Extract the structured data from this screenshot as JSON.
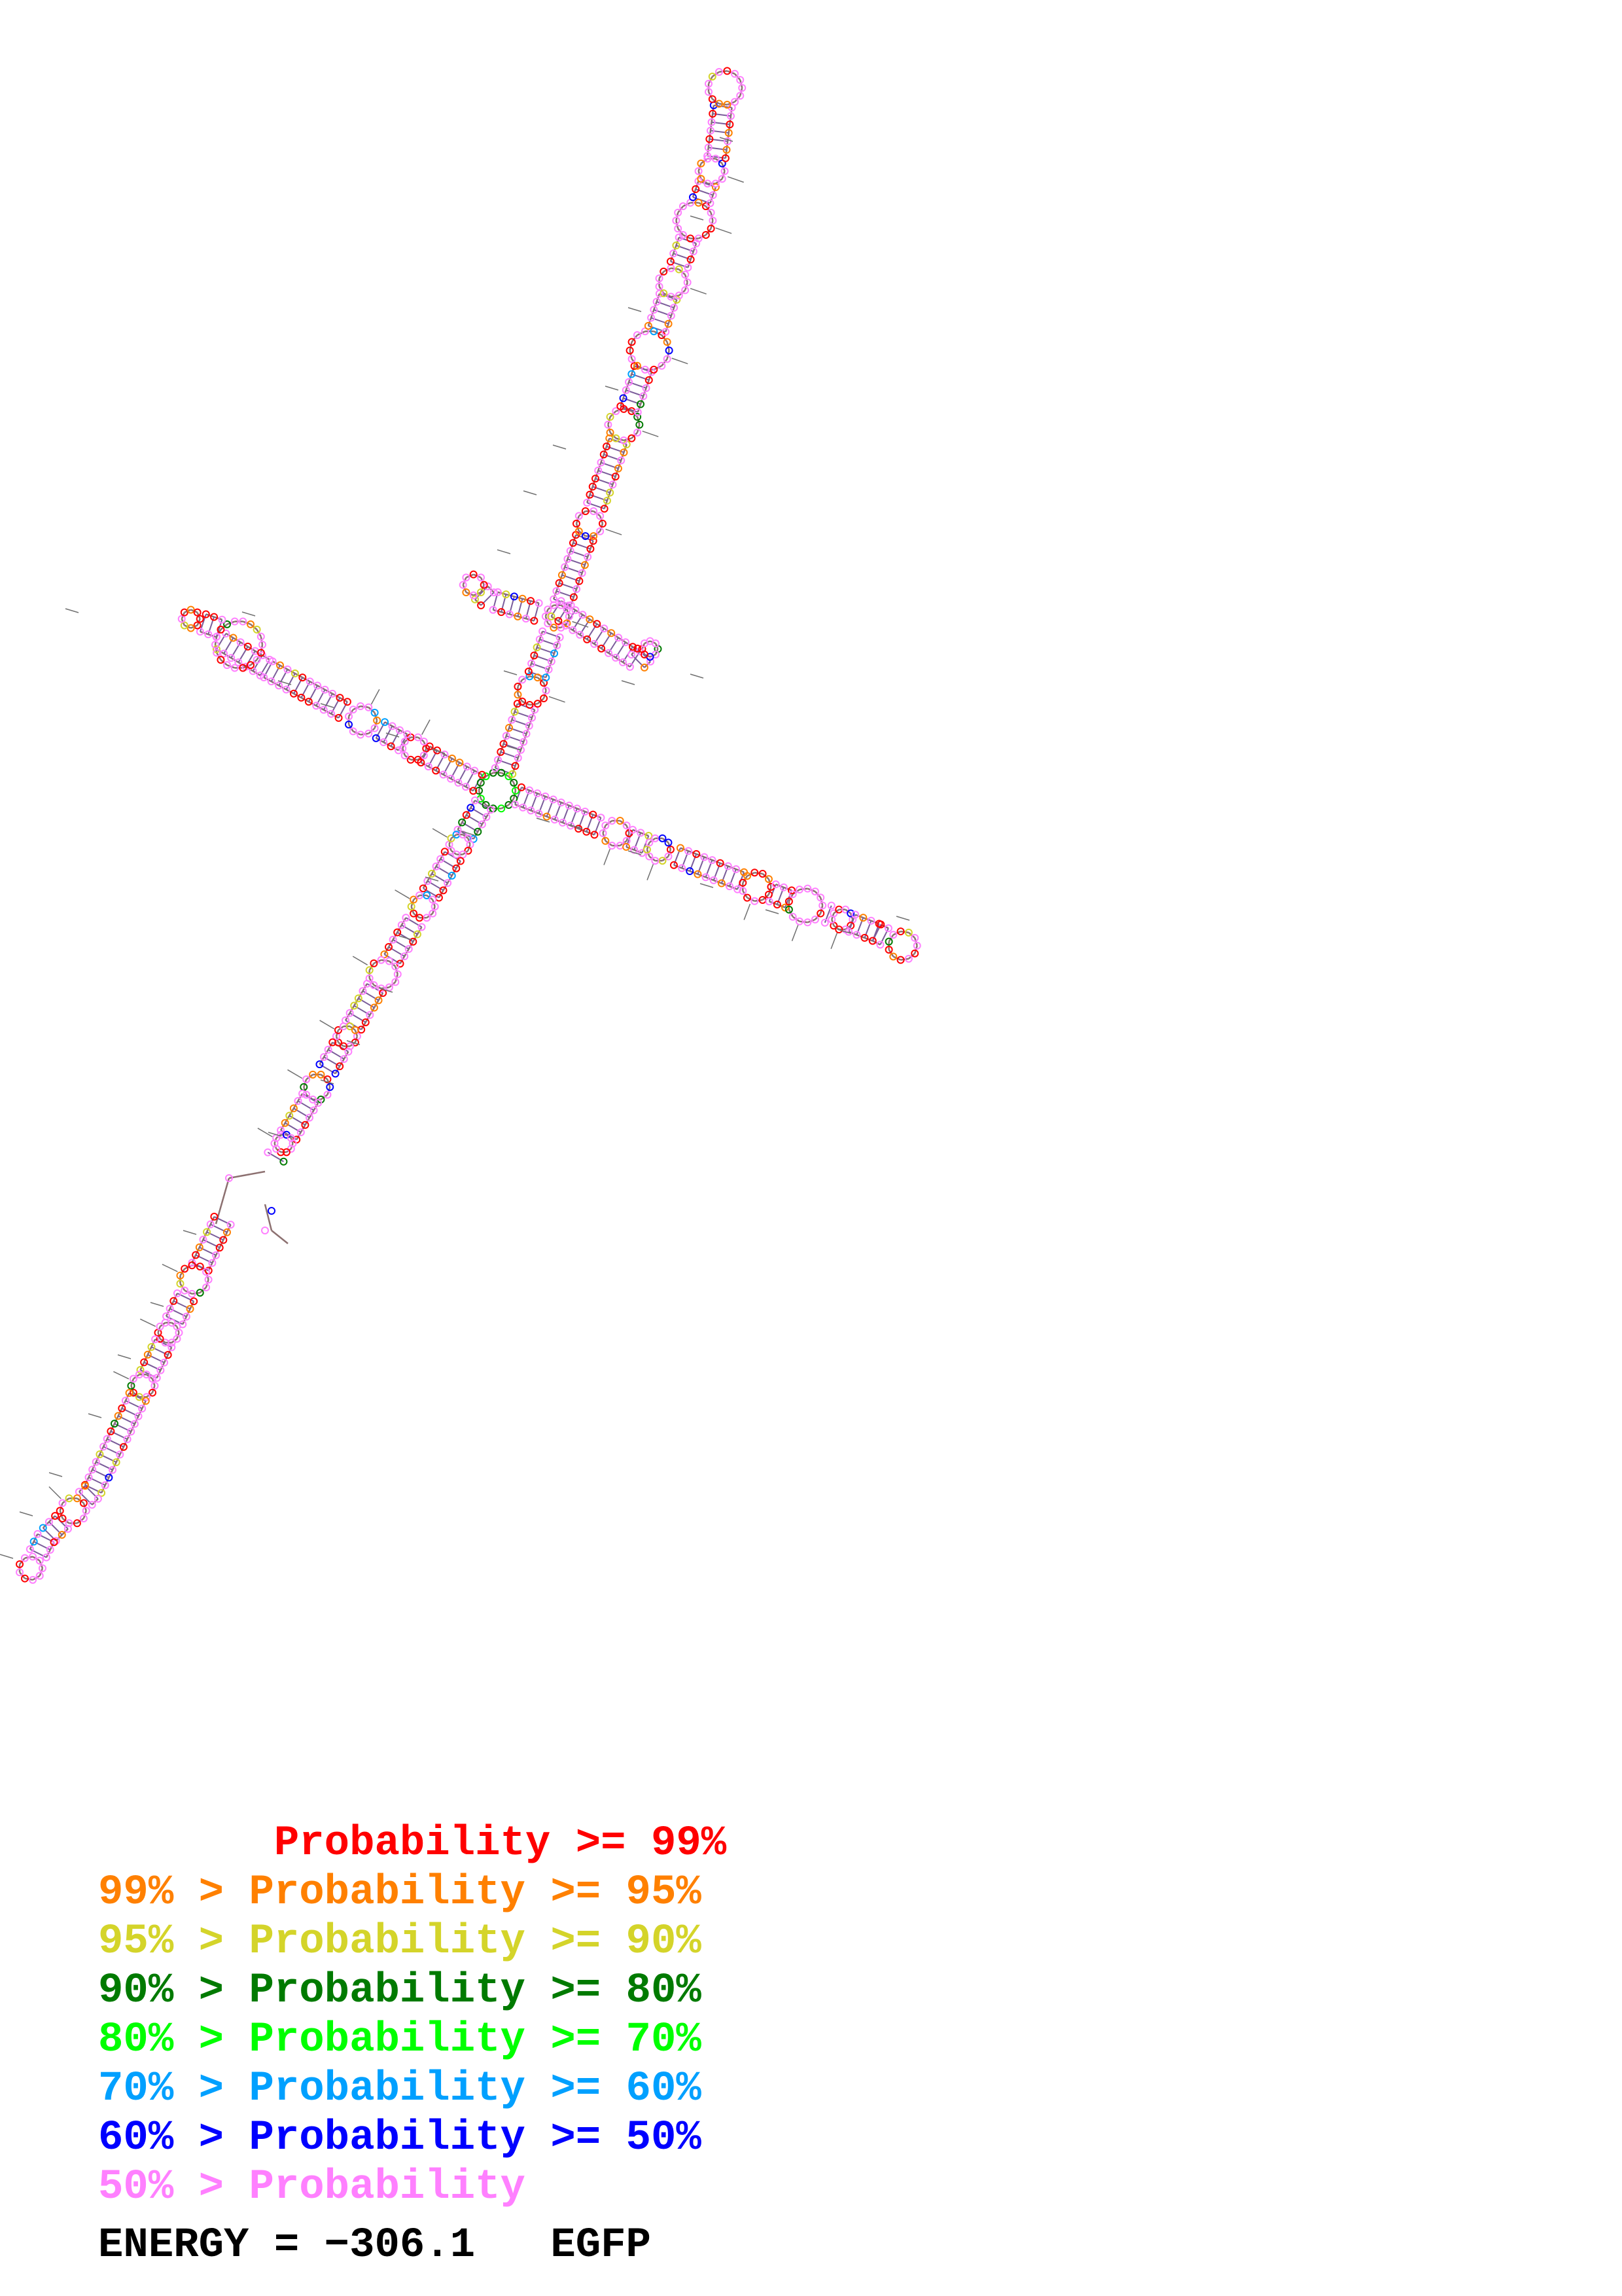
{
  "legend": {
    "items": [
      {
        "text": "       Probability >= 99%",
        "color": "#ff0000"
      },
      {
        "text": "99% > Probability >= 95%",
        "color": "#ff8000"
      },
      {
        "text": "95% > Probability >= 90%",
        "color": "#d4d42a"
      },
      {
        "text": "90% > Probability >= 80%",
        "color": "#007a00"
      },
      {
        "text": "80% > Probability >= 70%",
        "color": "#00ff00"
      },
      {
        "text": "70% > Probability >= 60%",
        "color": "#00a0ff"
      },
      {
        "text": "60% > Probability >= 50%",
        "color": "#0000ff"
      },
      {
        "text": "50% > Probability",
        "color": "#ff80ff"
      }
    ]
  },
  "energy": {
    "label": "ENERGY = ",
    "value": "−306.1",
    "name": "EGFP"
  },
  "colors": {
    "backbone": "#a08080",
    "pair": "#6a5acd",
    "nucleotide_default": "#b07090"
  }
}
